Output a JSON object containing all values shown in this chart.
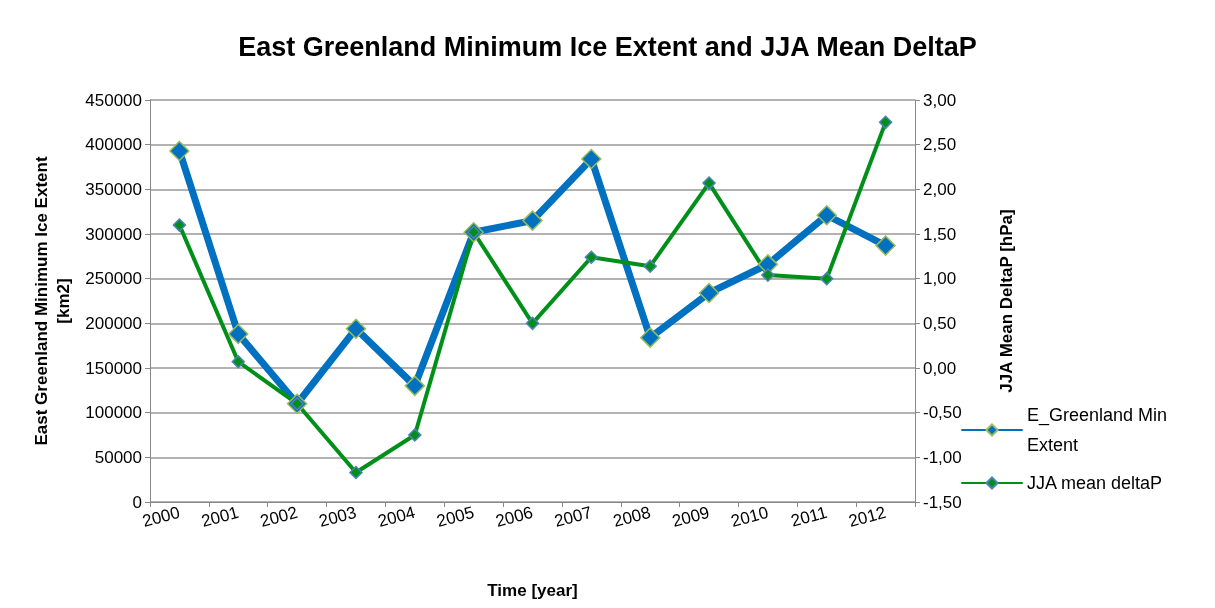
{
  "chart_data": {
    "type": "line",
    "title": "East Greenland Minimum Ice Extent and JJA Mean DeltaP",
    "xlabel": "Time [year]",
    "ylabel": "East Greenland Minimum Ice Extent\n[km2]",
    "y2label": "JJA Mean DeltaP [hPa]",
    "categories": [
      "2000",
      "2001",
      "2002",
      "2003",
      "2004",
      "2005",
      "2006",
      "2007",
      "2008",
      "2009",
      "2010",
      "2011",
      "2012"
    ],
    "series": [
      {
        "name": "E_Greenland Min Extent",
        "color": "#0070c0",
        "values": [
          393000,
          188000,
          110000,
          194000,
          130000,
          302000,
          315000,
          384000,
          184000,
          234000,
          266000,
          321000,
          287000
        ]
      },
      {
        "name": "JJA mean deltaP",
        "color": "#00901a",
        "axis": "y2",
        "values": [
          1.6,
          0.07,
          -0.4,
          -1.17,
          -0.75,
          1.52,
          0.5,
          1.24,
          1.14,
          2.07,
          1.04,
          1.0,
          2.75
        ]
      }
    ],
    "ylim": [
      0,
      450000
    ],
    "yticks": [
      0,
      50000,
      100000,
      150000,
      200000,
      250000,
      300000,
      350000,
      400000,
      450000
    ],
    "y2lim": [
      -1.5,
      3.0
    ],
    "y2ticks": [
      {
        "value": -1.5,
        "label": "-1,50"
      },
      {
        "value": -1.0,
        "label": "-1,00"
      },
      {
        "value": -0.5,
        "label": "-0,50"
      },
      {
        "value": 0,
        "label": "0,00"
      },
      {
        "value": 0.5,
        "label": "0,50"
      },
      {
        "value": 1.0,
        "label": "1,00"
      },
      {
        "value": 1.5,
        "label": "1,50"
      },
      {
        "value": 2.0,
        "label": "2,00"
      },
      {
        "value": 2.5,
        "label": "2,50"
      },
      {
        "value": 3.0,
        "label": "3,00"
      }
    ],
    "grid": "y",
    "legend": "right",
    "marker": "diamond",
    "line_style": "solid"
  }
}
